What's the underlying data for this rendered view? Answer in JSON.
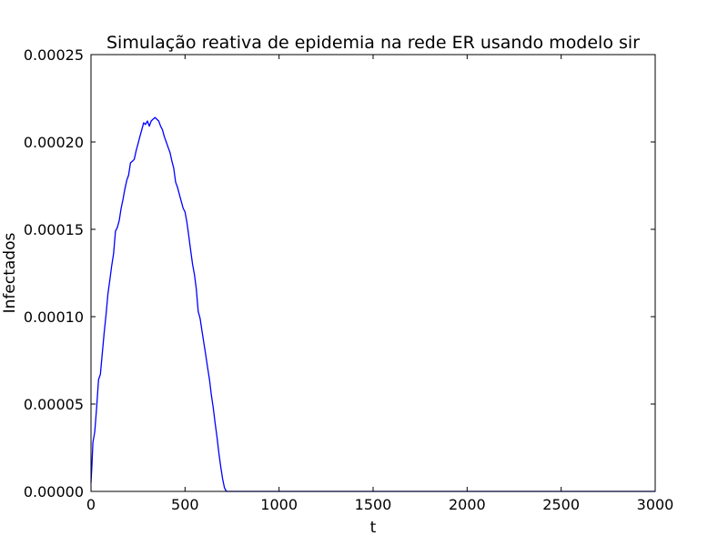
{
  "chart_data": {
    "type": "line",
    "title": "Simulação reativa de epidemia na rede ER usando modelo sir",
    "xlabel": "t",
    "ylabel": "Infectados",
    "xlim": [
      0,
      3000
    ],
    "ylim": [
      0,
      0.00025
    ],
    "grid": false,
    "x_ticks": [
      0,
      500,
      1000,
      1500,
      2000,
      2500,
      3000
    ],
    "x_tick_labels": [
      "0",
      "500",
      "1000",
      "1500",
      "2000",
      "2500",
      "3000"
    ],
    "y_ticks": [
      0,
      5e-05,
      0.0001,
      0.00015,
      0.0002,
      0.00025
    ],
    "y_tick_labels": [
      "0.00000",
      "0.00005",
      "0.00010",
      "0.00015",
      "0.00020",
      "0.00025"
    ],
    "series": [
      {
        "color": "#0000ff",
        "x": [
          0,
          5,
          10,
          20,
          30,
          40,
          50,
          60,
          70,
          80,
          90,
          100,
          110,
          120,
          130,
          140,
          150,
          160,
          170,
          180,
          190,
          200,
          210,
          220,
          230,
          240,
          250,
          260,
          270,
          280,
          290,
          300,
          310,
          320,
          330,
          340,
          350,
          360,
          370,
          380,
          390,
          400,
          410,
          420,
          430,
          440,
          450,
          460,
          470,
          480,
          490,
          500,
          510,
          520,
          530,
          540,
          550,
          560,
          570,
          580,
          590,
          600,
          610,
          620,
          630,
          640,
          650,
          660,
          670,
          680,
          690,
          700,
          710,
          720,
          730,
          740,
          750,
          760,
          770,
          780,
          790,
          800,
          810,
          820,
          830,
          840,
          850,
          900,
          1000,
          1500,
          2000,
          2500,
          3000
        ],
        "y": [
          5e-06,
          1.5e-05,
          2.8e-05,
          3.4e-05,
          4.8e-05,
          6.4e-05,
          6.7e-05,
          7.9e-05,
          9.1e-05,
          0.000101,
          0.000113,
          0.000121,
          0.000129,
          0.000136,
          0.000149,
          0.000151,
          0.000155,
          0.000162,
          0.000167,
          0.000173,
          0.000178,
          0.000181,
          0.000188,
          0.000189,
          0.00019,
          0.000195,
          0.000199,
          0.000203,
          0.000207,
          0.000211,
          0.00021,
          0.000212,
          0.000209,
          0.000212,
          0.000213,
          0.000214,
          0.000213,
          0.000212,
          0.000209,
          0.000207,
          0.000203,
          0.0002,
          0.000197,
          0.000194,
          0.000189,
          0.000185,
          0.000177,
          0.000174,
          0.00017,
          0.000166,
          0.000162,
          0.00016,
          0.000154,
          0.000146,
          0.000138,
          0.00013,
          0.000124,
          0.000116,
          0.000103,
          9.9e-05,
          9.2e-05,
          8.5e-05,
          7.8e-05,
          7.1e-05,
          6.4e-05,
          5.5e-05,
          4.8e-05,
          3.9e-05,
          3.1e-05,
          2.2e-05,
          1.4e-05,
          7e-06,
          2e-06,
          0,
          0,
          0,
          0,
          0,
          0,
          0,
          0,
          0,
          0,
          0,
          0,
          0,
          0,
          0,
          0,
          0,
          0,
          0,
          0
        ]
      }
    ]
  }
}
